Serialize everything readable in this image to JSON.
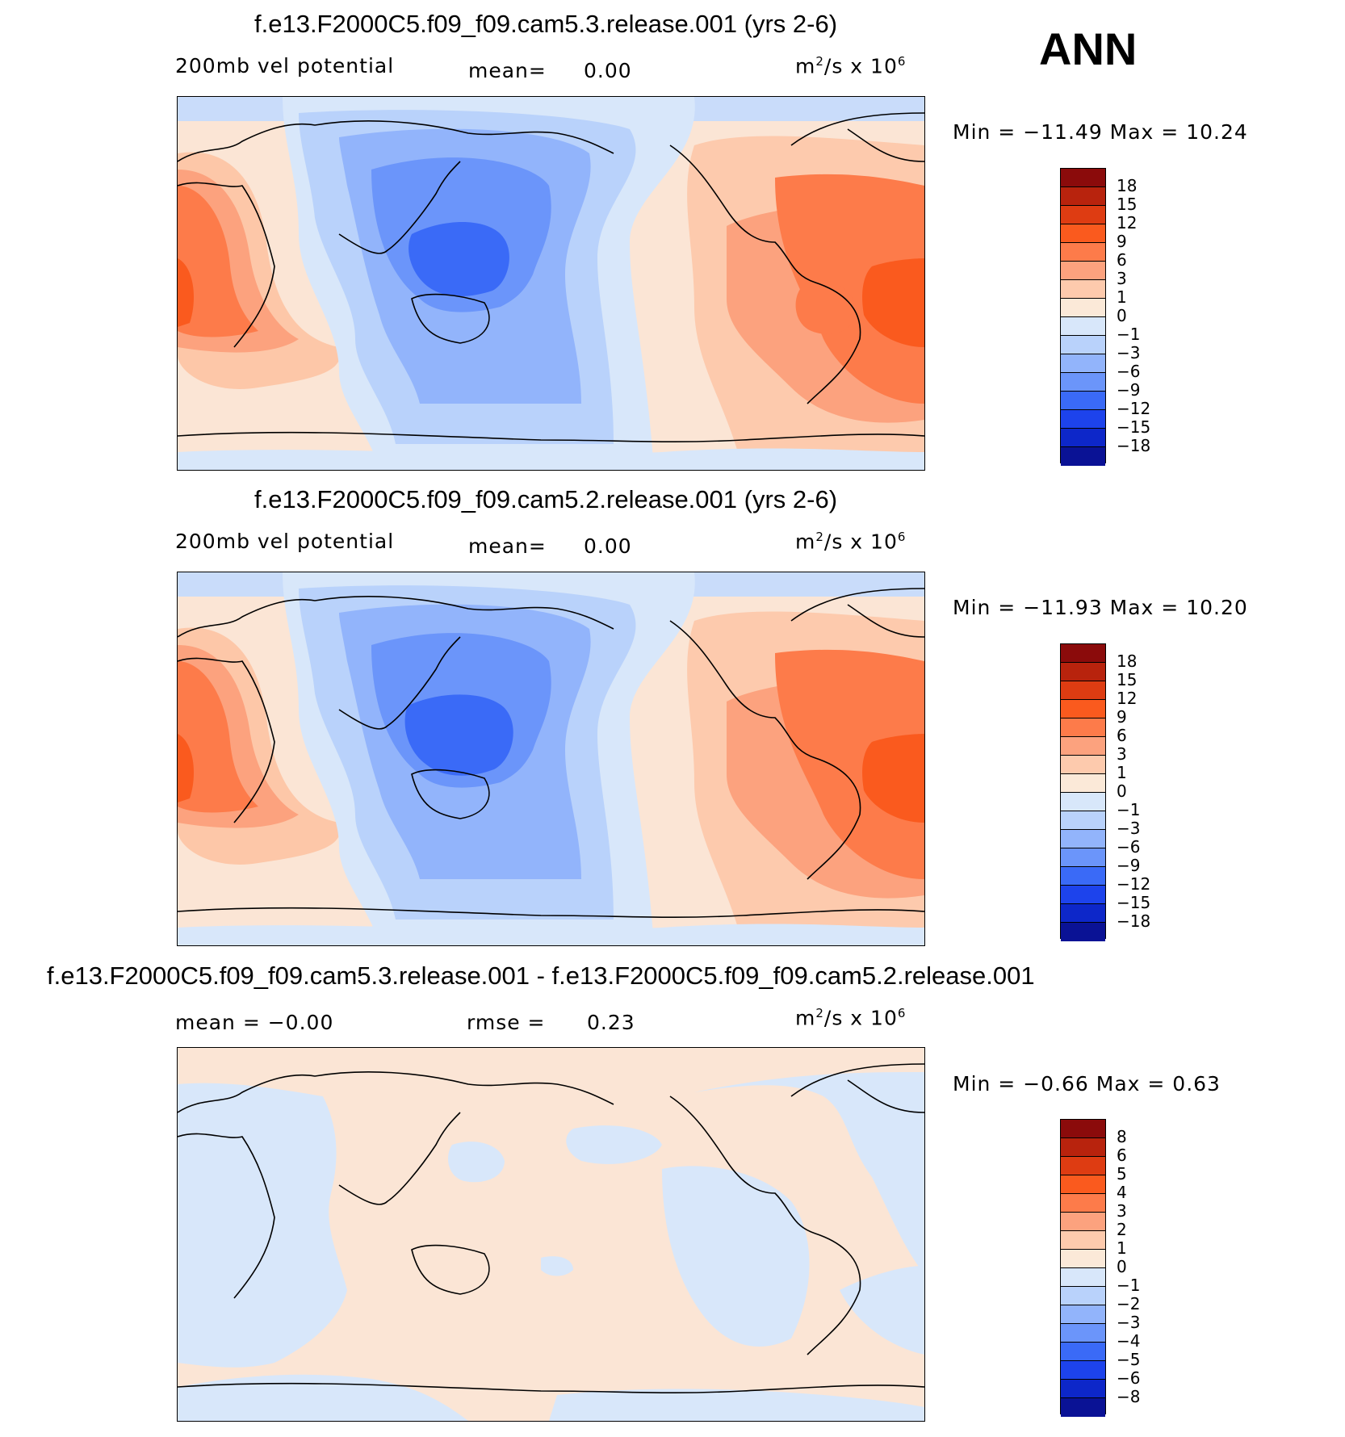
{
  "season": "ANN",
  "panels": [
    {
      "title": "f.e13.F2000C5.f09_f09.cam5.3.release.001 (yrs 2-6)",
      "left_label": "200mb  vel  potential",
      "mid_prefix": "mean=",
      "mid_value": "0.00",
      "units_base": "m",
      "units_exp": "2",
      "units_rest": "/s  x  10",
      "units_exp2": "6",
      "minmax": "Min  =  −11.49  Max  =    10.24",
      "colorbar_labels": [
        "18",
        "15",
        "12",
        "9",
        "6",
        "3",
        "1",
        "0",
        "−1",
        "−3",
        "−6",
        "−9",
        "−12",
        "−15",
        "−18"
      ]
    },
    {
      "title": "f.e13.F2000C5.f09_f09.cam5.2.release.001 (yrs 2-6)",
      "left_label": "200mb  vel  potential",
      "mid_prefix": "mean=",
      "mid_value": "0.00",
      "units_base": "m",
      "units_exp": "2",
      "units_rest": "/s  x  10",
      "units_exp2": "6",
      "minmax": "Min  =  −11.93  Max  =    10.20",
      "colorbar_labels": [
        "18",
        "15",
        "12",
        "9",
        "6",
        "3",
        "1",
        "0",
        "−1",
        "−3",
        "−6",
        "−9",
        "−12",
        "−15",
        "−18"
      ]
    },
    {
      "title": "f.e13.F2000C5.f09_f09.cam5.3.release.001 - f.e13.F2000C5.f09_f09.cam5.2.release.001",
      "left_label": "mean  =    −0.00",
      "mid_prefix": "rmse  =",
      "mid_value": "0.23",
      "units_base": "m",
      "units_exp": "2",
      "units_rest": "/s  x  10",
      "units_exp2": "6",
      "minmax": "Min  =    −0.66  Max  =     0.63",
      "colorbar_labels": [
        "8",
        "6",
        "5",
        "4",
        "3",
        "2",
        "1",
        "0",
        "−1",
        "−2",
        "−3",
        "−4",
        "−5",
        "−6",
        "−8"
      ]
    }
  ],
  "colorbar_colors": [
    "#8b0b0b",
    "#b8230d",
    "#de3c12",
    "#fa5a1e",
    "#fd7b4a",
    "#fca27e",
    "#fdcaad",
    "#fbe9d8",
    "#d8e7fa",
    "#b9d2fb",
    "#92b4fb",
    "#6b95fa",
    "#3a6af7",
    "#1d43ec",
    "#0d27c9",
    "#0a1295"
  ]
}
